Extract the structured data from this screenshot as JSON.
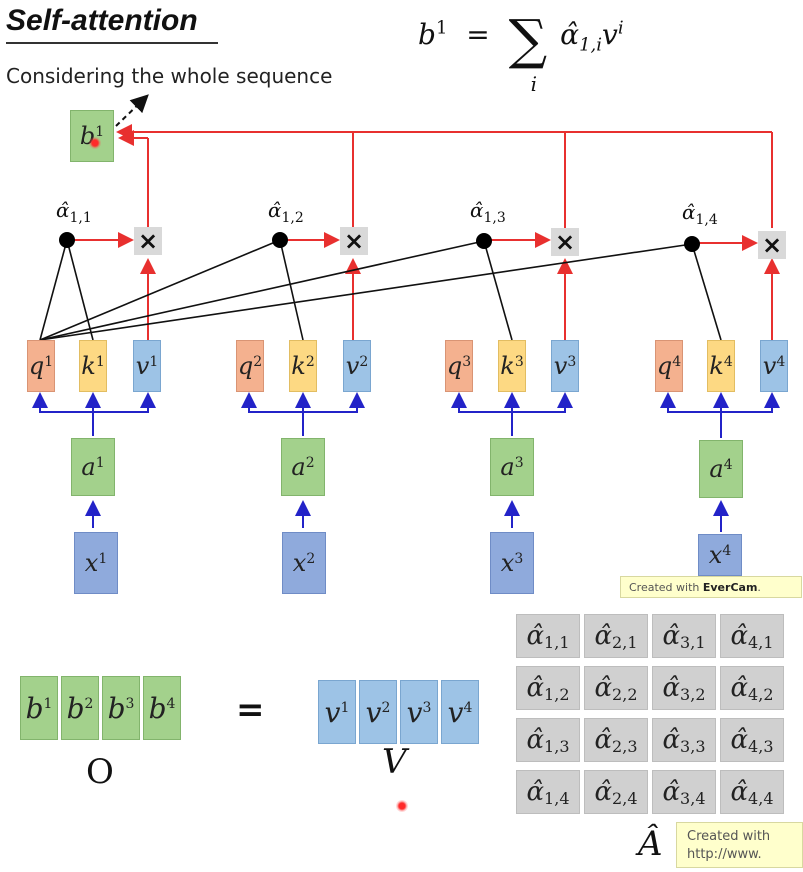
{
  "title": "Self-attention",
  "subtitle": "Considering the whole sequence",
  "formula": {
    "lhs_base": "b",
    "lhs_sup": "1",
    "eq": "=",
    "sigma": "∑",
    "sigma_sub": "i",
    "term_base": "α̂",
    "term_sub": "1,i",
    "v_base": "v",
    "v_sup": "i"
  },
  "output": {
    "base": "b",
    "sup": "1"
  },
  "alpha_labels": [
    {
      "base": "α̂",
      "sub": "1,1"
    },
    {
      "base": "α̂",
      "sub": "1,2"
    },
    {
      "base": "α̂",
      "sub": "1,3"
    },
    {
      "base": "α̂",
      "sub": "1,4"
    }
  ],
  "multiply_symbol": "×",
  "columns": [
    {
      "q": "q",
      "k": "k",
      "v": "v",
      "a": "a",
      "x": "x",
      "sup": "1"
    },
    {
      "q": "q",
      "k": "k",
      "v": "v",
      "a": "a",
      "x": "x",
      "sup": "2"
    },
    {
      "q": "q",
      "k": "k",
      "v": "v",
      "a": "a",
      "x": "x",
      "sup": "3"
    },
    {
      "q": "q",
      "k": "k",
      "v": "v",
      "a": "a",
      "x": "x",
      "sup": "4"
    }
  ],
  "matrix_eq": {
    "b_row": [
      {
        "base": "b",
        "sup": "1"
      },
      {
        "base": "b",
        "sup": "2"
      },
      {
        "base": "b",
        "sup": "3"
      },
      {
        "base": "b",
        "sup": "4"
      }
    ],
    "O_label": "O",
    "equals": "=",
    "v_row": [
      {
        "base": "v",
        "sup": "1"
      },
      {
        "base": "v",
        "sup": "2"
      },
      {
        "base": "v",
        "sup": "3"
      },
      {
        "base": "v",
        "sup": "4"
      }
    ],
    "V_label": "V",
    "A_label": "Â",
    "a_matrix": [
      [
        {
          "base": "α̂",
          "sub": "1,1"
        },
        {
          "base": "α̂",
          "sub": "2,1"
        },
        {
          "base": "α̂",
          "sub": "3,1"
        },
        {
          "base": "α̂",
          "sub": "4,1"
        }
      ],
      [
        {
          "base": "α̂",
          "sub": "1,2"
        },
        {
          "base": "α̂",
          "sub": "2,2"
        },
        {
          "base": "α̂",
          "sub": "3,2"
        },
        {
          "base": "α̂",
          "sub": "4,2"
        }
      ],
      [
        {
          "base": "α̂",
          "sub": "1,3"
        },
        {
          "base": "α̂",
          "sub": "2,3"
        },
        {
          "base": "α̂",
          "sub": "3,3"
        },
        {
          "base": "α̂",
          "sub": "4,3"
        }
      ],
      [
        {
          "base": "α̂",
          "sub": "1,4"
        },
        {
          "base": "α̂",
          "sub": "2,4"
        },
        {
          "base": "α̂",
          "sub": "3,4"
        },
        {
          "base": "α̂",
          "sub": "4,4"
        }
      ]
    ]
  },
  "watermarks": [
    {
      "prefix": "Created with ",
      "brand": "EverCam",
      "suffix": "."
    },
    {
      "line1": "Created with",
      "line2": "http://www."
    }
  ],
  "colors": {
    "red_arrow": "#e8302f",
    "blue_arrow": "#2323c8",
    "black_line": "#111111"
  }
}
